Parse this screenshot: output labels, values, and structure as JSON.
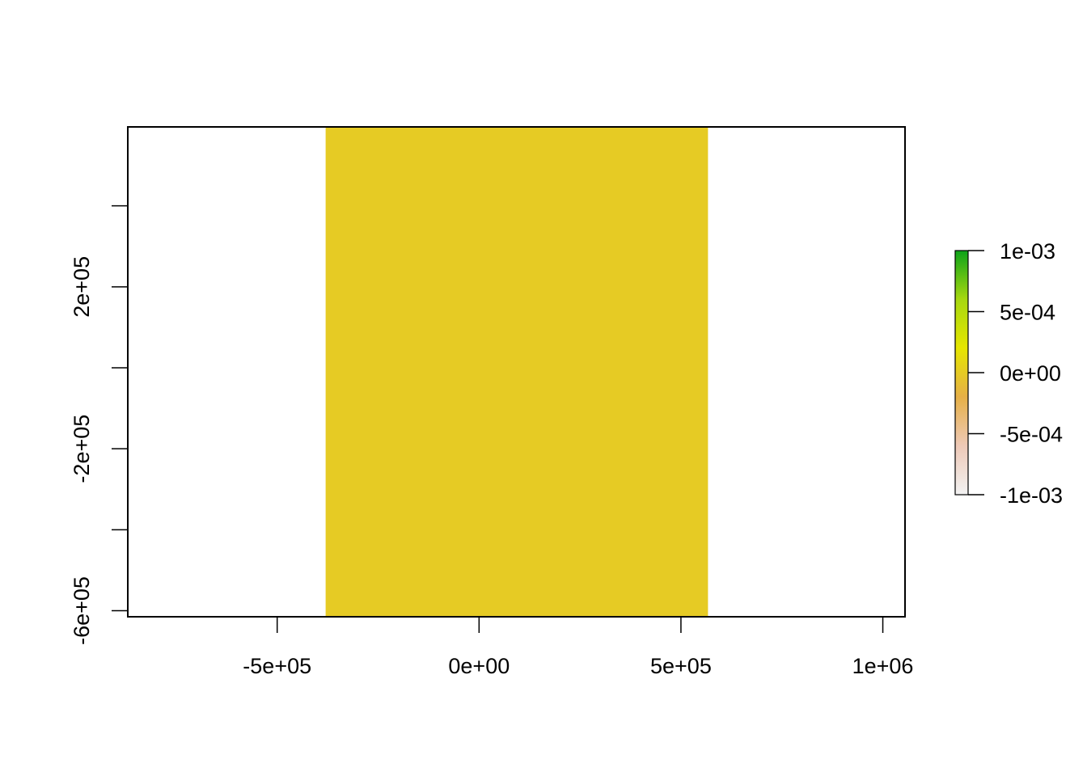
{
  "chart_data": {
    "type": "heatmap",
    "title": "",
    "xlabel": "",
    "ylabel": "",
    "xlim": [
      -870000,
      1055000
    ],
    "ylim": [
      -615000,
      595000
    ],
    "x_ticks": [
      {
        "value": -500000,
        "label": "-5e+05"
      },
      {
        "value": 0,
        "label": "0e+00"
      },
      {
        "value": 500000,
        "label": "5e+05"
      },
      {
        "value": 1000000,
        "label": "1e+06"
      }
    ],
    "y_ticks": [
      {
        "value": -600000,
        "label": "-6e+05"
      },
      {
        "value": -400000,
        "label": ""
      },
      {
        "value": -200000,
        "label": "-2e+05"
      },
      {
        "value": 0,
        "label": ""
      },
      {
        "value": 200000,
        "label": "2e+05"
      },
      {
        "value": 400000,
        "label": ""
      }
    ],
    "cells": [
      {
        "xmin": -380000,
        "xmax": 567000,
        "ymin": -615000,
        "ymax": 595000,
        "value": 0
      }
    ],
    "legend": {
      "placement": "right",
      "min": -0.001,
      "max": 0.001,
      "ticks": [
        {
          "value": 0.001,
          "label": "1e-03"
        },
        {
          "value": 0.0005,
          "label": "5e-04"
        },
        {
          "value": 0,
          "label": "0e+00"
        },
        {
          "value": -0.0005,
          "label": "-5e-04"
        },
        {
          "value": -0.001,
          "label": "-1e-03"
        }
      ],
      "color_stops": [
        "#F2F2F2",
        "#EEC9B7",
        "#E6B047",
        "#E6E600",
        "#A7D810",
        "#0DA319"
      ]
    },
    "grid": false
  }
}
